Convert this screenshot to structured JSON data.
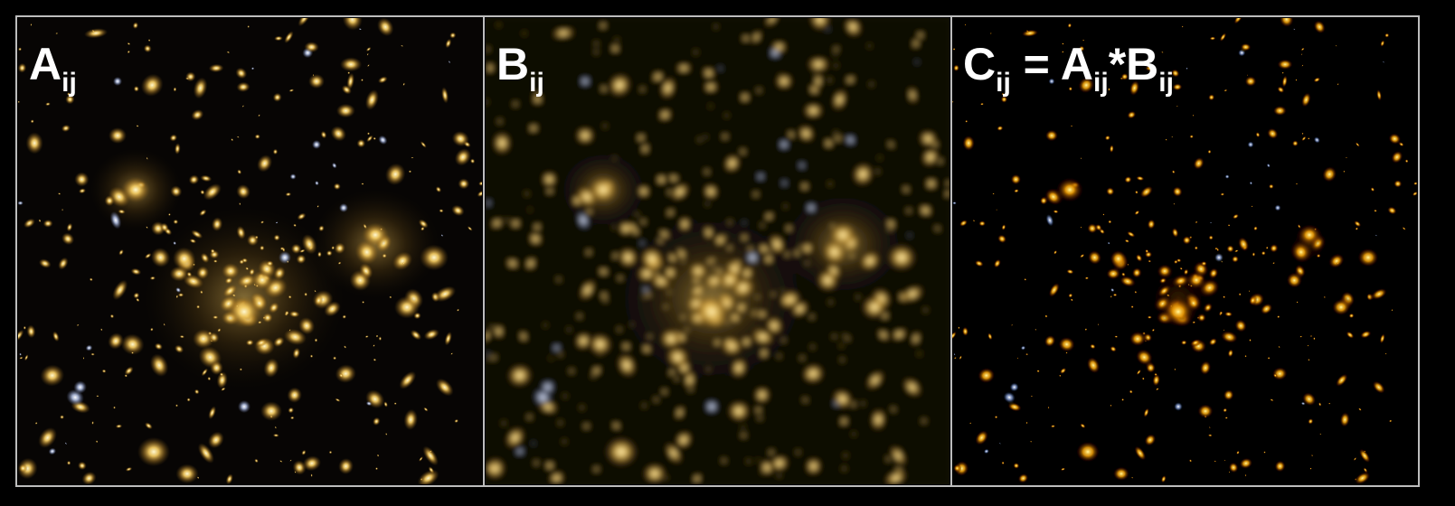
{
  "panels": [
    {
      "label": [
        [
          "A",
          "ij"
        ]
      ]
    },
    {
      "label": [
        [
          "B",
          "ij"
        ]
      ]
    },
    {
      "label": [
        [
          "C",
          "ij"
        ],
        [
          " = A",
          "ij"
        ],
        [
          "*B",
          "ij"
        ]
      ]
    }
  ]
}
